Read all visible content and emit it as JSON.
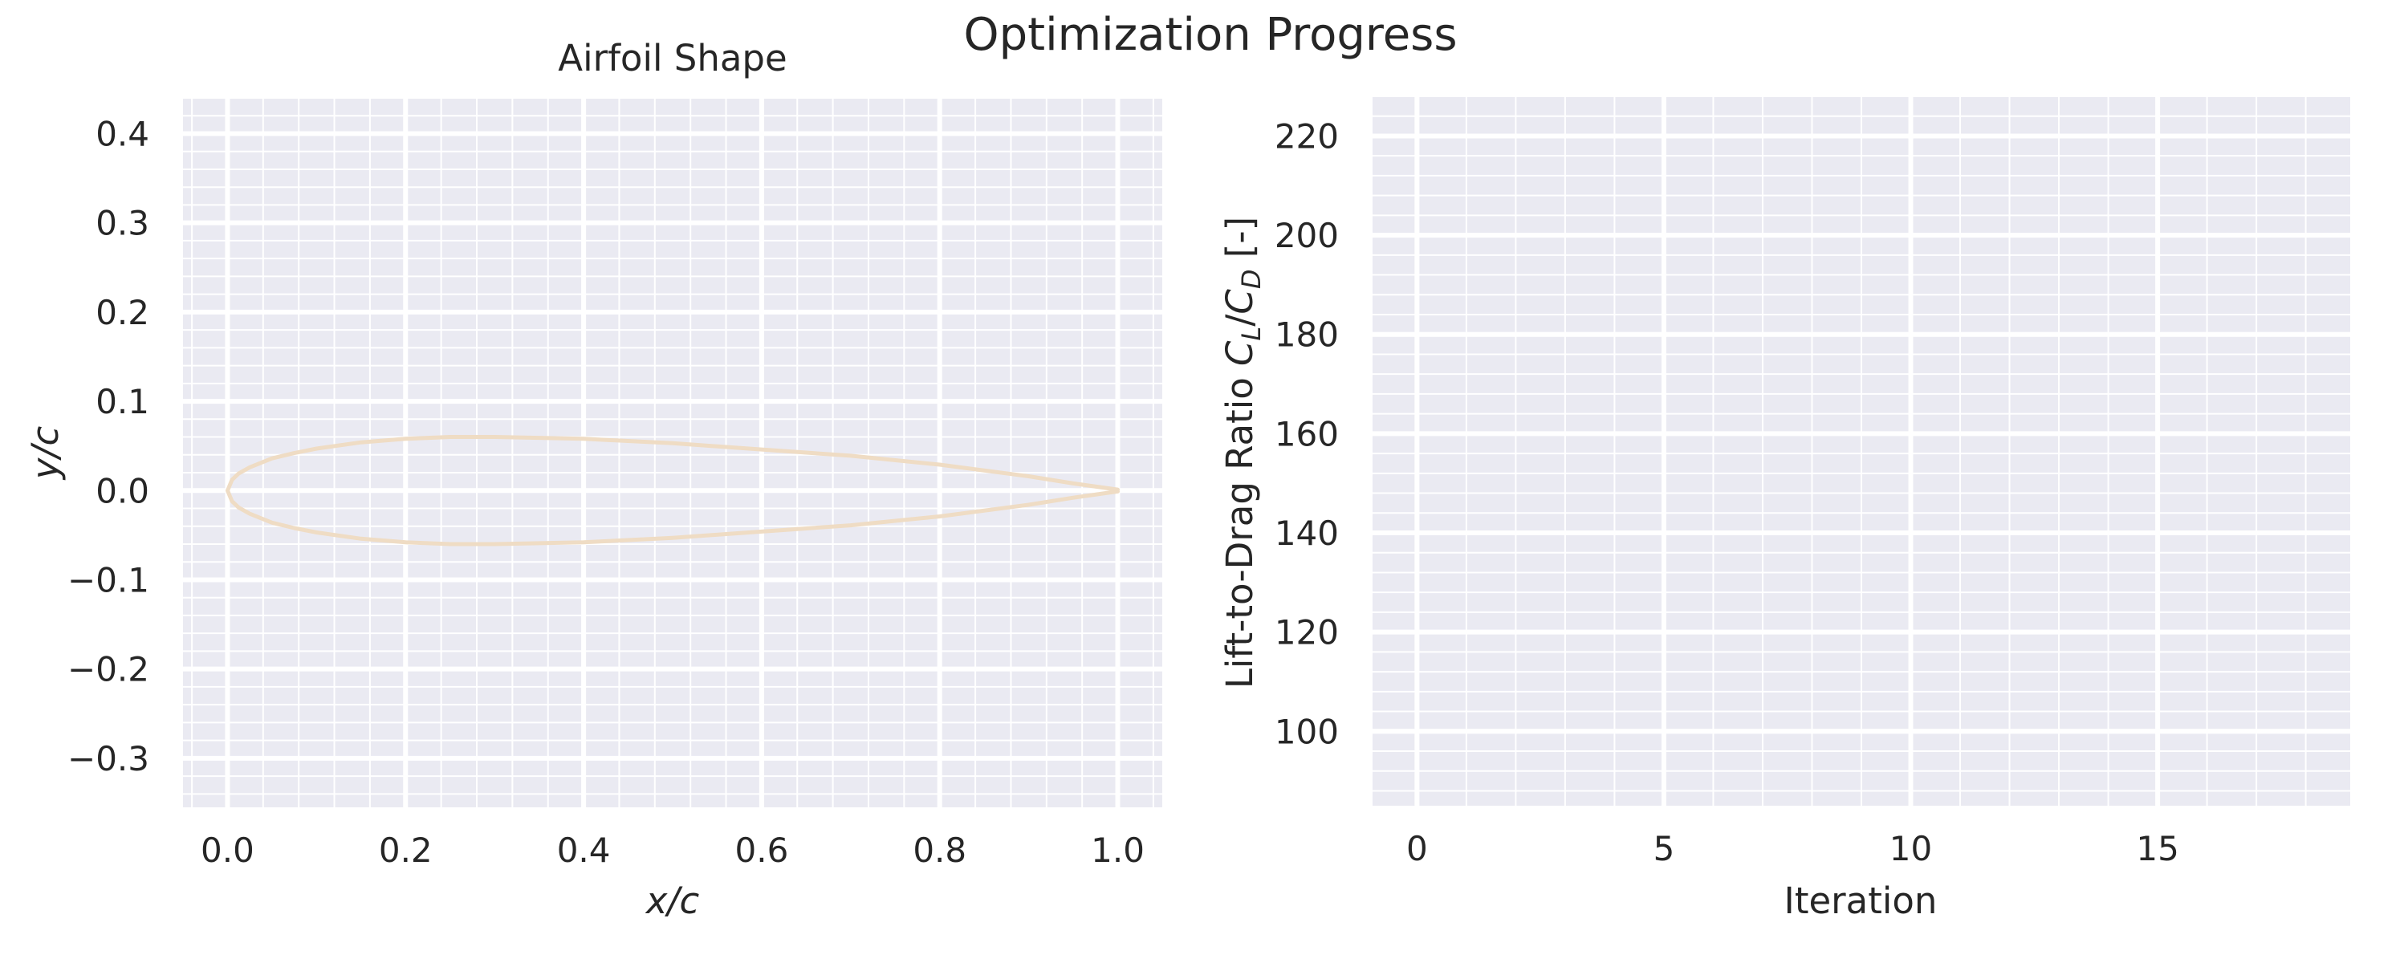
{
  "figure_title": "Optimization Progress",
  "colors": {
    "axes_bg": "#eaeaf2",
    "grid_major": "#ffffff",
    "grid_minor": "#ffffff",
    "airfoil_line": "#efdcc4",
    "text": "#262626"
  },
  "chart_data": [
    {
      "type": "line",
      "title": "Airfoil Shape",
      "xlabel": "x/c",
      "ylabel": "y/c",
      "xlim": [
        -0.05,
        1.05
      ],
      "ylim": [
        -0.355,
        0.44
      ],
      "xticks": [
        0.0,
        0.2,
        0.4,
        0.6,
        0.8,
        1.0
      ],
      "xtick_labels": [
        "0.0",
        "0.2",
        "0.4",
        "0.6",
        "0.8",
        "1.0"
      ],
      "yticks": [
        -0.3,
        -0.2,
        -0.1,
        0.0,
        0.1,
        0.2,
        0.3,
        0.4
      ],
      "ytick_labels": [
        "−0.3",
        "−0.2",
        "−0.1",
        "0.0",
        "0.1",
        "0.2",
        "0.3",
        "0.4"
      ],
      "grid": true,
      "minor_grid": true,
      "series": [
        {
          "x": [
            1.0,
            0.95,
            0.9,
            0.8,
            0.7,
            0.6,
            0.5,
            0.4,
            0.3,
            0.25,
            0.2,
            0.15,
            0.1,
            0.075,
            0.05,
            0.025,
            0.0125,
            0.005,
            0.0,
            0.005,
            0.0125,
            0.025,
            0.05,
            0.075,
            0.1,
            0.15,
            0.2,
            0.25,
            0.3,
            0.4,
            0.5,
            0.6,
            0.7,
            0.8,
            0.9,
            0.95,
            1.0
          ],
          "y": [
            0.001,
            0.008,
            0.016,
            0.029,
            0.039,
            0.046,
            0.053,
            0.058,
            0.06,
            0.06,
            0.058,
            0.054,
            0.047,
            0.042,
            0.036,
            0.026,
            0.019,
            0.012,
            0.0,
            -0.012,
            -0.019,
            -0.026,
            -0.036,
            -0.042,
            -0.047,
            -0.054,
            -0.058,
            -0.06,
            -0.06,
            -0.058,
            -0.053,
            -0.046,
            -0.039,
            -0.029,
            -0.016,
            -0.008,
            -0.001
          ]
        }
      ]
    },
    {
      "type": "line",
      "title": "",
      "xlabel": "Iteration",
      "ylabel": "Lift-to-Drag Ratio C_L/C_D [-]",
      "ylabel_parts": {
        "prefix": "Lift-to-Drag Ratio ",
        "c1": "C",
        "sub1": "L",
        "slash": "/",
        "c2": "C",
        "sub2": "D",
        "suffix": " [-]"
      },
      "xlim": [
        -0.9,
        18.9
      ],
      "ylim": [
        85,
        228
      ],
      "xticks": [
        0,
        5,
        10,
        15
      ],
      "xtick_labels": [
        "0",
        "5",
        "10",
        "15"
      ],
      "yticks": [
        100,
        120,
        140,
        160,
        180,
        200,
        220
      ],
      "ytick_labels": [
        "100",
        "120",
        "140",
        "160",
        "180",
        "200",
        "220"
      ],
      "grid": true,
      "minor_grid": true,
      "series": []
    }
  ]
}
